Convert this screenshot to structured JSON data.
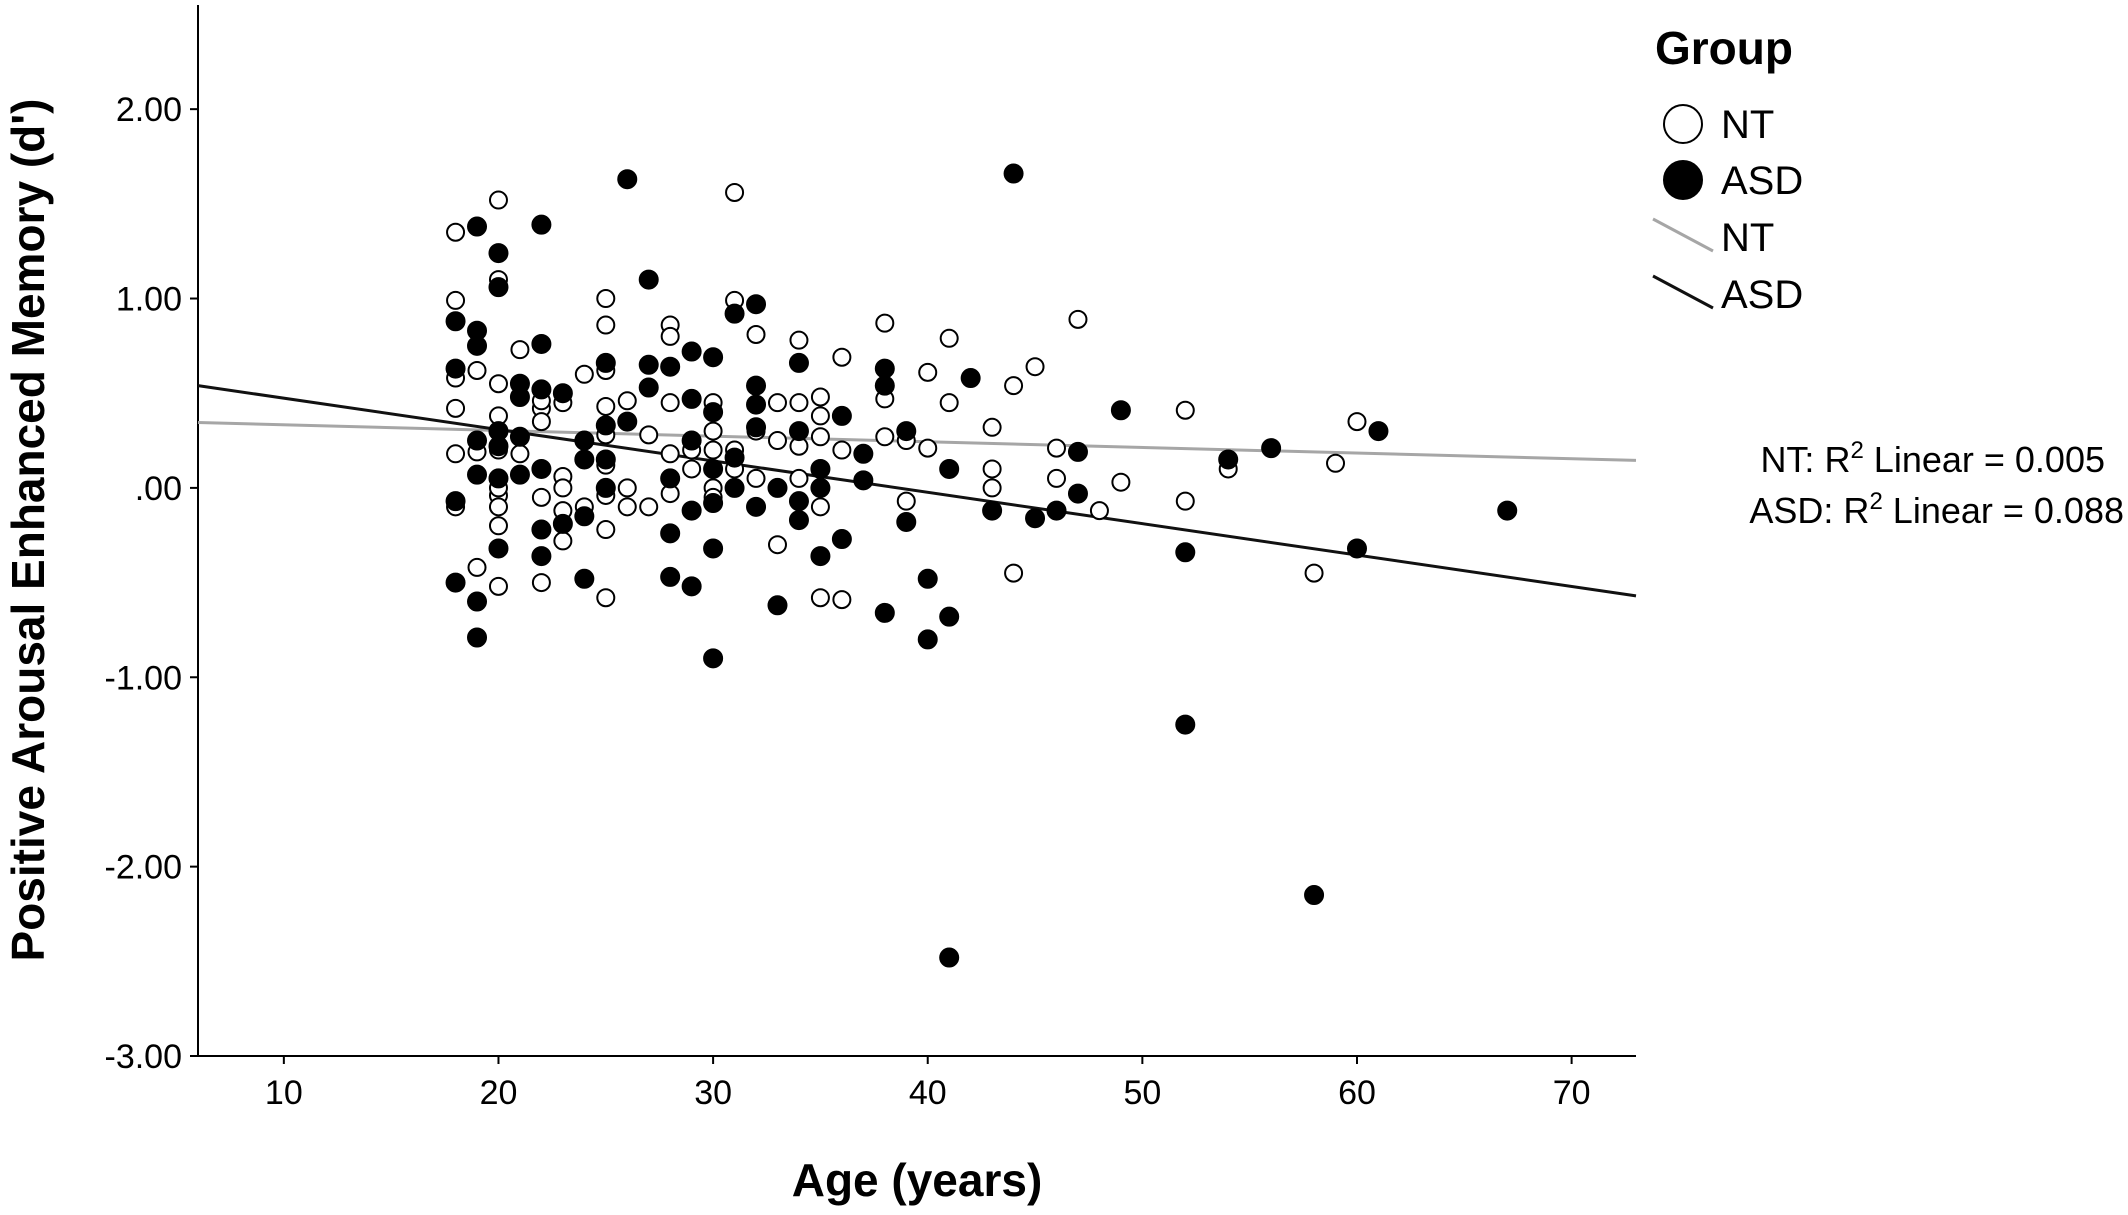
{
  "chart_data": {
    "type": "scatter",
    "title": "",
    "xlabel": "Age (years)",
    "ylabel": "Positive Arousal Enhanced Memory (d')",
    "xlim": [
      6,
      73
    ],
    "ylim": [
      -3.0,
      2.55
    ],
    "x_ticks": [
      10,
      20,
      30,
      40,
      50,
      60,
      70
    ],
    "x_tick_labels": [
      "10",
      "20",
      "30",
      "40",
      "50",
      "60",
      "70"
    ],
    "y_ticks": [
      2.0,
      1.0,
      0.0,
      -1.0,
      -2.0,
      -3.0
    ],
    "y_tick_labels": [
      "2.00",
      "1.00",
      ".00",
      "-1.00",
      "-2.00",
      "-3.00"
    ],
    "grid": false,
    "legend": {
      "title": "Group",
      "position": "top-right",
      "entries": [
        {
          "label": "NT",
          "kind": "marker",
          "style": "hollow"
        },
        {
          "label": "ASD",
          "kind": "marker",
          "style": "filled"
        },
        {
          "label": "NT",
          "kind": "line",
          "color": "#a6a6a6"
        },
        {
          "label": "ASD",
          "kind": "line",
          "color": "#111111"
        }
      ]
    },
    "annotations": [
      {
        "prefix": "NT: R",
        "sup": "2",
        "suffix": " Linear = 0.005"
      },
      {
        "prefix": "ASD: R",
        "sup": "2",
        "suffix": " Linear = 0.088"
      }
    ],
    "series": [
      {
        "name": "NT",
        "marker": "hollow",
        "points": [
          [
            18,
            1.35
          ],
          [
            18,
            0.99
          ],
          [
            18,
            0.58
          ],
          [
            18,
            0.42
          ],
          [
            18,
            0.18
          ],
          [
            18,
            -0.1
          ],
          [
            19,
            0.62
          ],
          [
            19,
            -0.42
          ],
          [
            19,
            0.19
          ],
          [
            20,
            1.52
          ],
          [
            20,
            1.1
          ],
          [
            20,
            0.55
          ],
          [
            20,
            0.38
          ],
          [
            20,
            0.2
          ],
          [
            20,
            -0.04
          ],
          [
            20,
            -0.1
          ],
          [
            20,
            -0.2
          ],
          [
            20,
            -0.52
          ],
          [
            20,
            0.0
          ],
          [
            21,
            0.73
          ],
          [
            21,
            0.18
          ],
          [
            22,
            0.42
          ],
          [
            22,
            0.35
          ],
          [
            22,
            -0.05
          ],
          [
            22,
            -0.5
          ],
          [
            22,
            0.46
          ],
          [
            23,
            0.06
          ],
          [
            23,
            0.0
          ],
          [
            23,
            -0.12
          ],
          [
            23,
            -0.28
          ],
          [
            23,
            0.45
          ],
          [
            24,
            0.6
          ],
          [
            24,
            0.15
          ],
          [
            24,
            -0.1
          ],
          [
            25,
            1.0
          ],
          [
            25,
            0.86
          ],
          [
            25,
            0.62
          ],
          [
            25,
            0.43
          ],
          [
            25,
            0.28
          ],
          [
            25,
            0.12
          ],
          [
            25,
            -0.04
          ],
          [
            25,
            -0.22
          ],
          [
            25,
            -0.58
          ],
          [
            26,
            0.46
          ],
          [
            26,
            0.0
          ],
          [
            26,
            -0.1
          ],
          [
            27,
            0.28
          ],
          [
            27,
            -0.1
          ],
          [
            28,
            0.86
          ],
          [
            28,
            0.8
          ],
          [
            28,
            0.45
          ],
          [
            28,
            0.18
          ],
          [
            28,
            -0.03
          ],
          [
            29,
            0.2
          ],
          [
            29,
            0.1
          ],
          [
            30,
            0.45
          ],
          [
            30,
            0.3
          ],
          [
            30,
            0.2
          ],
          [
            30,
            0.0
          ],
          [
            30,
            -0.05
          ],
          [
            31,
            1.56
          ],
          [
            31,
            0.99
          ],
          [
            31,
            0.2
          ],
          [
            31,
            0.1
          ],
          [
            31,
            0.0
          ],
          [
            32,
            0.81
          ],
          [
            32,
            0.3
          ],
          [
            32,
            0.05
          ],
          [
            33,
            0.45
          ],
          [
            33,
            0.25
          ],
          [
            33,
            -0.3
          ],
          [
            34,
            0.78
          ],
          [
            34,
            0.45
          ],
          [
            34,
            0.22
          ],
          [
            34,
            0.05
          ],
          [
            35,
            0.48
          ],
          [
            35,
            0.38
          ],
          [
            35,
            0.27
          ],
          [
            35,
            0.0
          ],
          [
            35,
            -0.1
          ],
          [
            35,
            -0.58
          ],
          [
            36,
            0.69
          ],
          [
            36,
            0.2
          ],
          [
            36,
            -0.59
          ],
          [
            38,
            0.87
          ],
          [
            38,
            0.47
          ],
          [
            38,
            0.27
          ],
          [
            39,
            0.25
          ],
          [
            39,
            -0.07
          ],
          [
            40,
            0.61
          ],
          [
            40,
            0.21
          ],
          [
            41,
            0.79
          ],
          [
            41,
            0.45
          ],
          [
            43,
            0.32
          ],
          [
            43,
            0.1
          ],
          [
            43,
            0.0
          ],
          [
            44,
            0.54
          ],
          [
            44,
            -0.45
          ],
          [
            45,
            0.64
          ],
          [
            46,
            0.21
          ],
          [
            46,
            0.05
          ],
          [
            47,
            0.89
          ],
          [
            48,
            -0.12
          ],
          [
            49,
            0.03
          ],
          [
            52,
            0.41
          ],
          [
            52,
            -0.07
          ],
          [
            54,
            0.1
          ],
          [
            58,
            -0.45
          ],
          [
            59,
            0.13
          ],
          [
            60,
            0.35
          ]
        ]
      },
      {
        "name": "ASD",
        "marker": "filled",
        "points": [
          [
            18,
            0.88
          ],
          [
            18,
            0.63
          ],
          [
            18,
            -0.07
          ],
          [
            18,
            -0.5
          ],
          [
            19,
            1.38
          ],
          [
            19,
            0.83
          ],
          [
            19,
            0.75
          ],
          [
            19,
            0.25
          ],
          [
            19,
            0.07
          ],
          [
            19,
            -0.6
          ],
          [
            19,
            -0.79
          ],
          [
            20,
            1.24
          ],
          [
            20,
            1.06
          ],
          [
            20,
            0.3
          ],
          [
            20,
            0.22
          ],
          [
            20,
            0.05
          ],
          [
            20,
            -0.32
          ],
          [
            21,
            0.55
          ],
          [
            21,
            0.48
          ],
          [
            21,
            0.27
          ],
          [
            21,
            0.07
          ],
          [
            22,
            1.39
          ],
          [
            22,
            0.76
          ],
          [
            22,
            0.52
          ],
          [
            22,
            0.1
          ],
          [
            22,
            -0.22
          ],
          [
            22,
            -0.36
          ],
          [
            23,
            0.5
          ],
          [
            23,
            -0.19
          ],
          [
            24,
            0.25
          ],
          [
            24,
            0.15
          ],
          [
            24,
            -0.15
          ],
          [
            24,
            -0.48
          ],
          [
            25,
            0.66
          ],
          [
            25,
            0.33
          ],
          [
            25,
            0.15
          ],
          [
            25,
            0.0
          ],
          [
            26,
            1.63
          ],
          [
            26,
            0.35
          ],
          [
            27,
            1.1
          ],
          [
            27,
            0.65
          ],
          [
            27,
            0.53
          ],
          [
            28,
            0.64
          ],
          [
            28,
            0.05
          ],
          [
            28,
            -0.24
          ],
          [
            28,
            -0.47
          ],
          [
            29,
            0.72
          ],
          [
            29,
            0.47
          ],
          [
            29,
            0.25
          ],
          [
            29,
            -0.12
          ],
          [
            29,
            -0.52
          ],
          [
            30,
            0.69
          ],
          [
            30,
            0.4
          ],
          [
            30,
            0.1
          ],
          [
            30,
            -0.08
          ],
          [
            30,
            -0.32
          ],
          [
            30,
            -0.9
          ],
          [
            31,
            0.92
          ],
          [
            31,
            0.16
          ],
          [
            31,
            0.0
          ],
          [
            32,
            0.97
          ],
          [
            32,
            0.54
          ],
          [
            32,
            0.44
          ],
          [
            32,
            0.32
          ],
          [
            32,
            -0.1
          ],
          [
            33,
            0.0
          ],
          [
            33,
            -0.62
          ],
          [
            34,
            0.66
          ],
          [
            34,
            0.3
          ],
          [
            34,
            -0.07
          ],
          [
            34,
            -0.17
          ],
          [
            35,
            0.1
          ],
          [
            35,
            0.0
          ],
          [
            35,
            -0.36
          ],
          [
            36,
            0.38
          ],
          [
            36,
            -0.27
          ],
          [
            37,
            0.18
          ],
          [
            37,
            0.04
          ],
          [
            38,
            0.63
          ],
          [
            38,
            0.54
          ],
          [
            38,
            -0.66
          ],
          [
            39,
            0.3
          ],
          [
            39,
            -0.18
          ],
          [
            40,
            -0.48
          ],
          [
            40,
            -0.8
          ],
          [
            41,
            0.1
          ],
          [
            41,
            -0.68
          ],
          [
            41,
            -2.48
          ],
          [
            42,
            0.58
          ],
          [
            43,
            -0.12
          ],
          [
            44,
            1.66
          ],
          [
            45,
            -0.16
          ],
          [
            46,
            -0.12
          ],
          [
            47,
            0.19
          ],
          [
            47,
            -0.03
          ],
          [
            49,
            0.41
          ],
          [
            52,
            -0.34
          ],
          [
            52,
            -1.25
          ],
          [
            54,
            0.15
          ],
          [
            56,
            0.21
          ],
          [
            58,
            -2.15
          ],
          [
            60,
            -0.32
          ],
          [
            61,
            0.3
          ],
          [
            67,
            -0.12
          ]
        ]
      }
    ],
    "fit_lines": [
      {
        "name": "NT",
        "x": [
          6,
          73
        ],
        "y": [
          0.345,
          0.145
        ],
        "color": "#a6a6a6"
      },
      {
        "name": "ASD",
        "x": [
          6,
          73
        ],
        "y": [
          0.54,
          -0.57
        ],
        "color": "#111111"
      }
    ]
  }
}
